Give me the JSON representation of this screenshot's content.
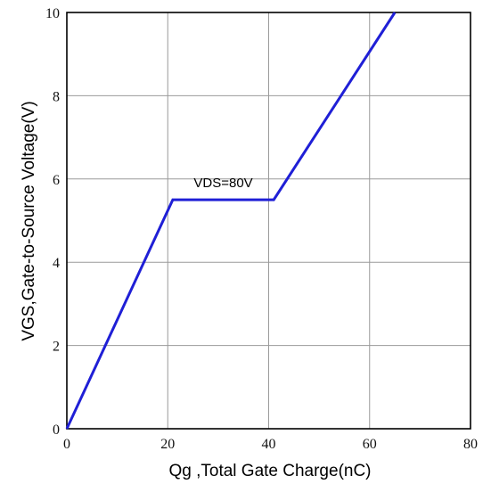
{
  "chart_data": {
    "type": "line",
    "title": "",
    "xlabel": "Qg ,Total Gate Charge(nC)",
    "ylabel": "VGS,Gate-to-Source Voltage(V)",
    "xlim": [
      0,
      80
    ],
    "ylim": [
      0,
      10
    ],
    "x_ticks": [
      0,
      20,
      40,
      60,
      80
    ],
    "y_ticks": [
      0,
      2,
      4,
      6,
      8,
      10
    ],
    "grid": true,
    "series": [
      {
        "color": "#1f1fd6",
        "points": [
          {
            "x": 0,
            "y": 0
          },
          {
            "x": 21,
            "y": 5.5
          },
          {
            "x": 41,
            "y": 5.5
          },
          {
            "x": 65,
            "y": 10
          }
        ]
      }
    ],
    "annotations": [
      {
        "text": "VDS=80V",
        "x": 31,
        "y": 5.8
      }
    ]
  }
}
